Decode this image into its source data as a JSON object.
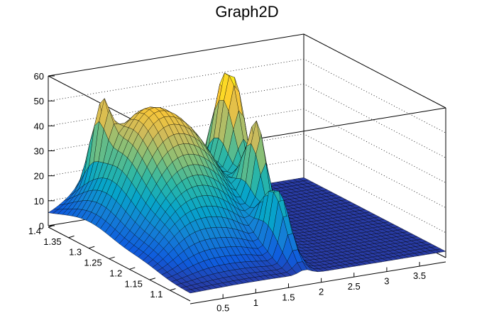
{
  "chart_data": {
    "type": "surface3d",
    "title": "Graph2D",
    "xlabel": "",
    "ylabel": "",
    "zlabel": "",
    "xlim": [
      0,
      3.9
    ],
    "ylim": [
      1.05,
      1.4
    ],
    "zlim": [
      0,
      60
    ],
    "x_ticks": [
      "0.5",
      "1",
      "1.5",
      "2",
      "2.5",
      "3",
      "3.5"
    ],
    "y_ticks": [
      "1.1",
      "1.15",
      "1.2",
      "1.25",
      "1.3",
      "1.35",
      "1.4"
    ],
    "z_ticks": [
      "0",
      "10",
      "20",
      "30",
      "40",
      "50",
      "60"
    ],
    "grid": true,
    "colormap": [
      "#352a87",
      "#0f5cdd",
      "#1481d6",
      "#06a4ca",
      "#2eb7a4",
      "#87bf77",
      "#d1bb59",
      "#fec832",
      "#f9fb0e"
    ],
    "peaks": [
      {
        "x": 2.15,
        "y": 1.3,
        "z": 55,
        "sx": 0.14,
        "sy": 0.035
      },
      {
        "x": 1.95,
        "y": 1.2,
        "z": 40,
        "sx": 0.1,
        "sy": 0.025
      },
      {
        "x": 1.75,
        "y": 1.12,
        "z": 27,
        "sx": 0.09,
        "sy": 0.03
      },
      {
        "x": 0.85,
        "y": 1.3,
        "z": 45,
        "sx": 0.45,
        "sy": 0.07
      },
      {
        "x": 1.55,
        "y": 1.28,
        "z": 22,
        "sx": 0.35,
        "sy": 0.06
      },
      {
        "x": 0.55,
        "y": 1.36,
        "z": 24,
        "sx": 0.08,
        "sy": 0.02
      },
      {
        "x": 1.1,
        "y": 1.18,
        "z": 12,
        "sx": 0.45,
        "sy": 0.05
      },
      {
        "x": 0.5,
        "y": 1.16,
        "z": 6,
        "sx": 0.3,
        "sy": 0.04
      }
    ]
  }
}
